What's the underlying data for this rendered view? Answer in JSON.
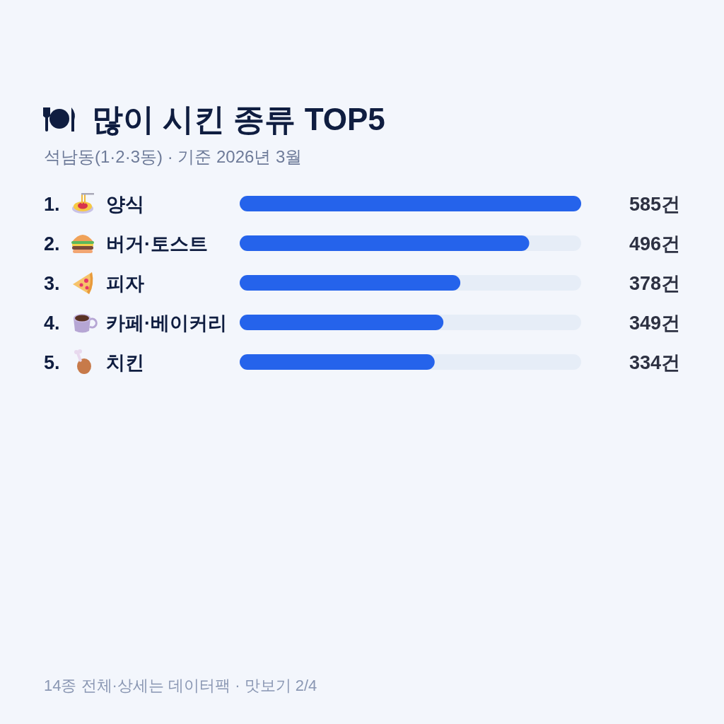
{
  "chart_data": {
    "type": "bar",
    "orientation": "horizontal",
    "title": "많이 시킨 종류 TOP5",
    "subtitle": "석남동(1·2·3동) · 기준 2026년 3월",
    "categories": [
      "1. 양식",
      "2. 버거·토스트",
      "3. 피자",
      "4. 카페·베이커리",
      "5. 치킨"
    ],
    "values": [
      585,
      496,
      378,
      349,
      334
    ],
    "value_labels": [
      "585건",
      "496건",
      "378건",
      "349건",
      "334건"
    ],
    "color": "#2563eb",
    "annotations": [
      "14종 전체·상세는 데이터팩 · 맛보기 2/4"
    ]
  }
}
